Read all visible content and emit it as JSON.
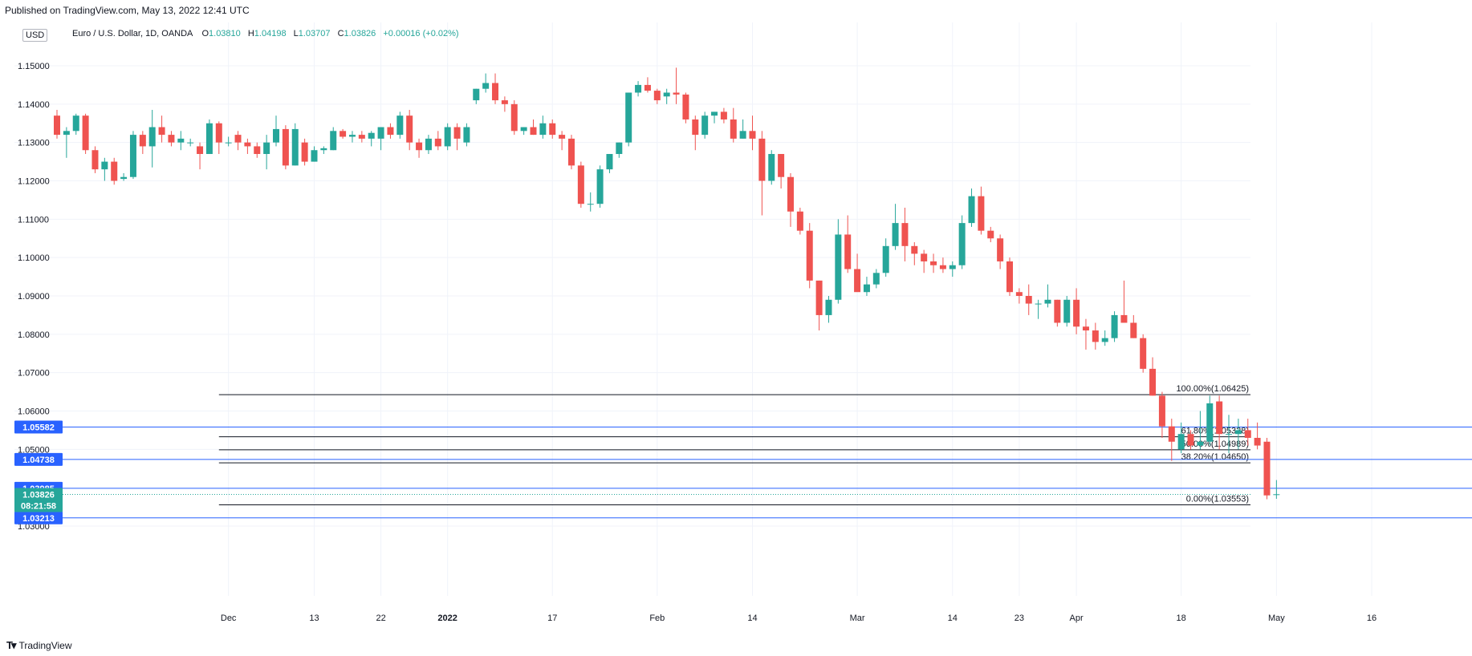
{
  "header": {
    "published": "Published on TradingView.com, May 13, 2022 12:41 UTC"
  },
  "legend": {
    "currency": "USD",
    "title": "Euro / U.S. Dollar, 1D, OANDA",
    "open_label": "O",
    "open": "1.03810",
    "high_label": "H",
    "high": "1.04198",
    "low_label": "L",
    "low": "1.03707",
    "close_label": "C",
    "close": "1.03826",
    "change": "+0.00016 (+0.02%)"
  },
  "footer": {
    "brand": "TradingView"
  },
  "colors": {
    "up": "#26a69a",
    "down": "#ef5350",
    "hline": "#2962ff",
    "fib": "#131722",
    "grid": "#f0f3fa",
    "current_tag": "#26a69a"
  },
  "chart_data": {
    "type": "candlestick",
    "title": "Euro / U.S. Dollar, 1D, OANDA",
    "ylim": [
      1.025,
      1.16
    ],
    "y_ticks": [
      "1.15000",
      "1.14000",
      "1.13000",
      "1.12000",
      "1.11000",
      "1.10000",
      "1.09000",
      "1.08000",
      "1.07000",
      "1.06000",
      "1.05000",
      "1.03000"
    ],
    "y_tick_values": [
      1.15,
      1.14,
      1.13,
      1.12,
      1.11,
      1.1,
      1.09,
      1.08,
      1.07,
      1.06,
      1.05,
      1.03
    ],
    "x_ticks": [
      {
        "label": "Dec",
        "index": 18
      },
      {
        "label": "13",
        "index": 27
      },
      {
        "label": "22",
        "index": 34
      },
      {
        "label": "2022",
        "index": 41
      },
      {
        "label": "17",
        "index": 52
      },
      {
        "label": "Feb",
        "index": 63
      },
      {
        "label": "14",
        "index": 73
      },
      {
        "label": "Mar",
        "index": 84
      },
      {
        "label": "14",
        "index": 94
      },
      {
        "label": "23",
        "index": 101
      },
      {
        "label": "Apr",
        "index": 107
      },
      {
        "label": "18",
        "index": 118
      },
      {
        "label": "May",
        "index": 128
      },
      {
        "label": "16",
        "index": 138
      }
    ],
    "candles": [
      [
        1.137,
        1.1385,
        1.131,
        1.132
      ],
      [
        1.132,
        1.134,
        1.126,
        1.133
      ],
      [
        1.133,
        1.1375,
        1.132,
        1.137
      ],
      [
        1.137,
        1.1375,
        1.127,
        1.128
      ],
      [
        1.128,
        1.129,
        1.122,
        1.123
      ],
      [
        1.123,
        1.126,
        1.12,
        1.125
      ],
      [
        1.125,
        1.126,
        1.119,
        1.12
      ],
      [
        1.1205,
        1.122,
        1.12,
        1.121
      ],
      [
        1.121,
        1.133,
        1.1205,
        1.132
      ],
      [
        1.132,
        1.133,
        1.127,
        1.129
      ],
      [
        1.129,
        1.1385,
        1.1235,
        1.134
      ],
      [
        1.134,
        1.137,
        1.13,
        1.132
      ],
      [
        1.132,
        1.133,
        1.129,
        1.13
      ],
      [
        1.13,
        1.133,
        1.128,
        1.131
      ],
      [
        1.13,
        1.131,
        1.129,
        1.13
      ],
      [
        1.129,
        1.13,
        1.123,
        1.127
      ],
      [
        1.127,
        1.136,
        1.127,
        1.135
      ],
      [
        1.135,
        1.1355,
        1.127,
        1.13
      ],
      [
        1.13,
        1.1315,
        1.129,
        1.13
      ],
      [
        1.132,
        1.133,
        1.128,
        1.13
      ],
      [
        1.13,
        1.131,
        1.127,
        1.129
      ],
      [
        1.129,
        1.13,
        1.126,
        1.127
      ],
      [
        1.127,
        1.132,
        1.123,
        1.13
      ],
      [
        1.13,
        1.137,
        1.129,
        1.1335
      ],
      [
        1.1335,
        1.1345,
        1.123,
        1.124
      ],
      [
        1.124,
        1.135,
        1.124,
        1.1335
      ],
      [
        1.13,
        1.131,
        1.124,
        1.125
      ],
      [
        1.125,
        1.129,
        1.125,
        1.128
      ],
      [
        1.128,
        1.129,
        1.127,
        1.1285
      ],
      [
        1.128,
        1.134,
        1.128,
        1.133
      ],
      [
        1.133,
        1.1335,
        1.131,
        1.1315
      ],
      [
        1.1315,
        1.133,
        1.13,
        1.132
      ],
      [
        1.132,
        1.133,
        1.13,
        1.131
      ],
      [
        1.131,
        1.133,
        1.129,
        1.1325
      ],
      [
        1.131,
        1.134,
        1.128,
        1.134
      ],
      [
        1.134,
        1.135,
        1.131,
        1.132
      ],
      [
        1.132,
        1.138,
        1.131,
        1.137
      ],
      [
        1.137,
        1.1385,
        1.128,
        1.13
      ],
      [
        1.13,
        1.131,
        1.126,
        1.128
      ],
      [
        1.128,
        1.132,
        1.127,
        1.131
      ],
      [
        1.131,
        1.133,
        1.128,
        1.129
      ],
      [
        1.129,
        1.135,
        1.128,
        1.134
      ],
      [
        1.134,
        1.135,
        1.128,
        1.131
      ],
      [
        1.13,
        1.135,
        1.129,
        1.134
      ],
      [
        1.141,
        1.144,
        1.14,
        1.144
      ],
      [
        1.144,
        1.148,
        1.143,
        1.1455
      ],
      [
        1.1455,
        1.148,
        1.14,
        1.141
      ],
      [
        1.141,
        1.142,
        1.138,
        1.14
      ],
      [
        1.14,
        1.141,
        1.132,
        1.133
      ],
      [
        1.133,
        1.134,
        1.132,
        1.134
      ],
      [
        1.134,
        1.136,
        1.132,
        1.132
      ],
      [
        1.132,
        1.137,
        1.131,
        1.135
      ],
      [
        1.135,
        1.136,
        1.131,
        1.132
      ],
      [
        1.132,
        1.133,
        1.128,
        1.131
      ],
      [
        1.131,
        1.132,
        1.123,
        1.124
      ],
      [
        1.124,
        1.125,
        1.113,
        1.114
      ],
      [
        1.114,
        1.117,
        1.112,
        1.114
      ],
      [
        1.114,
        1.124,
        1.113,
        1.123
      ],
      [
        1.123,
        1.127,
        1.122,
        1.127
      ],
      [
        1.127,
        1.13,
        1.126,
        1.13
      ],
      [
        1.13,
        1.143,
        1.129,
        1.143
      ],
      [
        1.143,
        1.146,
        1.142,
        1.145
      ],
      [
        1.145,
        1.147,
        1.143,
        1.1435
      ],
      [
        1.1435,
        1.144,
        1.14,
        1.141
      ],
      [
        1.142,
        1.144,
        1.14,
        1.143
      ],
      [
        1.143,
        1.1495,
        1.14,
        1.1425
      ],
      [
        1.1425,
        1.143,
        1.135,
        1.136
      ],
      [
        1.136,
        1.137,
        1.128,
        1.132
      ],
      [
        1.132,
        1.138,
        1.131,
        1.137
      ],
      [
        1.137,
        1.138,
        1.135,
        1.138
      ],
      [
        1.138,
        1.139,
        1.135,
        1.136
      ],
      [
        1.136,
        1.139,
        1.13,
        1.131
      ],
      [
        1.131,
        1.136,
        1.131,
        1.133
      ],
      [
        1.133,
        1.137,
        1.128,
        1.131
      ],
      [
        1.131,
        1.133,
        1.111,
        1.12
      ],
      [
        1.12,
        1.128,
        1.119,
        1.127
      ],
      [
        1.127,
        1.127,
        1.118,
        1.121
      ],
      [
        1.121,
        1.122,
        1.108,
        1.112
      ],
      [
        1.112,
        1.113,
        1.106,
        1.107
      ],
      [
        1.107,
        1.109,
        1.092,
        1.094
      ],
      [
        1.094,
        1.094,
        1.081,
        1.085
      ],
      [
        1.085,
        1.09,
        1.083,
        1.089
      ],
      [
        1.089,
        1.11,
        1.088,
        1.106
      ],
      [
        1.106,
        1.111,
        1.096,
        1.097
      ],
      [
        1.097,
        1.101,
        1.092,
        1.091
      ],
      [
        1.091,
        1.095,
        1.09,
        1.093
      ],
      [
        1.093,
        1.097,
        1.092,
        1.096
      ],
      [
        1.096,
        1.105,
        1.095,
        1.103
      ],
      [
        1.103,
        1.114,
        1.102,
        1.109
      ],
      [
        1.109,
        1.113,
        1.099,
        1.103
      ],
      [
        1.103,
        1.104,
        1.098,
        1.101
      ],
      [
        1.101,
        1.102,
        1.096,
        1.099
      ],
      [
        1.099,
        1.101,
        1.096,
        1.098
      ],
      [
        1.098,
        1.1,
        1.096,
        1.097
      ],
      [
        1.097,
        1.099,
        1.095,
        1.098
      ],
      [
        1.098,
        1.111,
        1.097,
        1.109
      ],
      [
        1.109,
        1.118,
        1.108,
        1.116
      ],
      [
        1.116,
        1.1185,
        1.106,
        1.107
      ],
      [
        1.107,
        1.108,
        1.104,
        1.105
      ],
      [
        1.105,
        1.106,
        1.097,
        1.099
      ],
      [
        1.099,
        1.1,
        1.09,
        1.091
      ],
      [
        1.091,
        1.092,
        1.088,
        1.09
      ],
      [
        1.09,
        1.093,
        1.085,
        1.088
      ],
      [
        1.088,
        1.089,
        1.084,
        1.088
      ],
      [
        1.088,
        1.093,
        1.087,
        1.089
      ],
      [
        1.089,
        1.089,
        1.082,
        1.083
      ],
      [
        1.083,
        1.09,
        1.082,
        1.089
      ],
      [
        1.089,
        1.092,
        1.08,
        1.082
      ],
      [
        1.082,
        1.084,
        1.076,
        1.081
      ],
      [
        1.081,
        1.083,
        1.076,
        1.078
      ],
      [
        1.078,
        1.081,
        1.077,
        1.079
      ],
      [
        1.079,
        1.086,
        1.078,
        1.085
      ],
      [
        1.085,
        1.094,
        1.083,
        1.083
      ],
      [
        1.083,
        1.085,
        1.079,
        1.079
      ],
      [
        1.079,
        1.08,
        1.07,
        1.071
      ],
      [
        1.071,
        1.074,
        1.064,
        1.064
      ],
      [
        1.064,
        1.065,
        1.053,
        1.056
      ],
      [
        1.056,
        1.058,
        1.047,
        1.052
      ],
      [
        1.05,
        1.057,
        1.049,
        1.054
      ],
      [
        1.054,
        1.055,
        1.05,
        1.051
      ],
      [
        1.051,
        1.06,
        1.05,
        1.052
      ],
      [
        1.052,
        1.064,
        1.051,
        1.062
      ],
      [
        1.0625,
        1.064,
        1.05,
        1.054
      ],
      [
        1.054,
        1.059,
        1.049,
        1.054
      ],
      [
        1.054,
        1.058,
        1.05,
        1.055
      ],
      [
        1.055,
        1.058,
        1.051,
        1.053
      ],
      [
        1.053,
        1.057,
        1.05,
        1.051
      ],
      [
        1.052,
        1.053,
        1.037,
        1.038
      ],
      [
        1.0381,
        1.042,
        1.0371,
        1.0383
      ]
    ],
    "horizontal_lines": [
      {
        "price": 1.05582,
        "label": "1.05582"
      },
      {
        "price": 1.04738,
        "label": "1.04738"
      },
      {
        "price": 1.03985,
        "label": "1.03985"
      },
      {
        "price": 1.03213,
        "label": "1.03213"
      }
    ],
    "current_price": {
      "price": 1.03826,
      "label": "1.03826",
      "countdown": "08:21:58"
    },
    "fibonacci": {
      "start_index": 17,
      "levels": [
        {
          "price": 1.06425,
          "label": "100.00%(1.06425)"
        },
        {
          "price": 1.05328,
          "label": "61.80%(1.05328)"
        },
        {
          "price": 1.04989,
          "label": "50.00%(1.04989)"
        },
        {
          "price": 1.0465,
          "label": "38.20%(1.04650)"
        },
        {
          "price": 1.03553,
          "label": "0.00%(1.03553)"
        }
      ]
    }
  }
}
